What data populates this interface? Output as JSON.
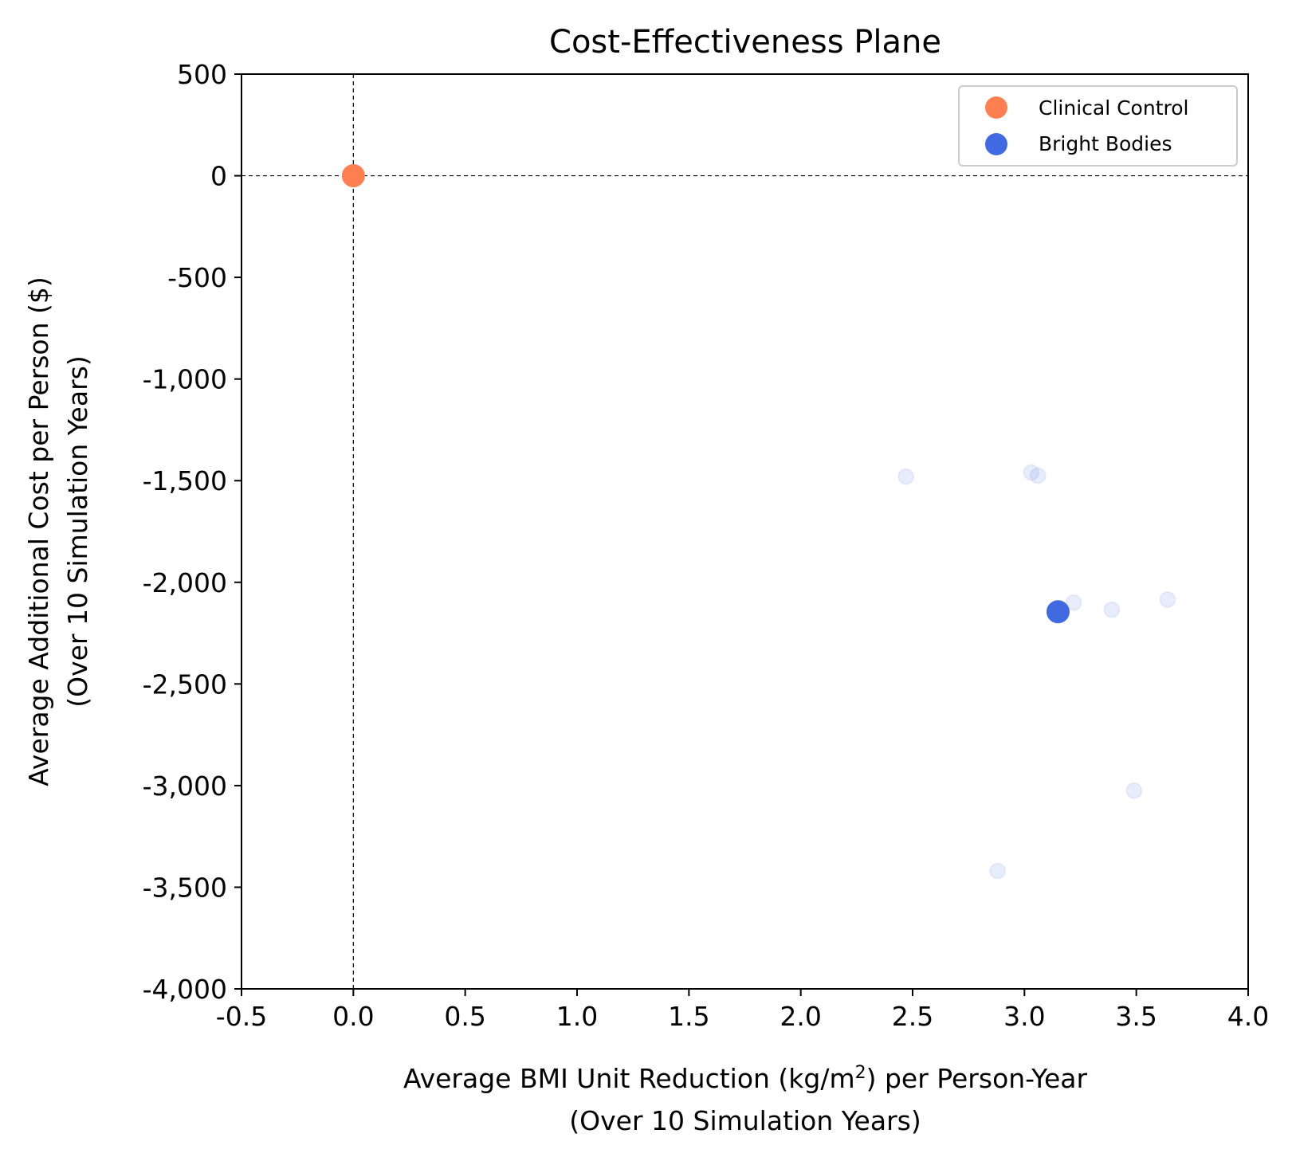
{
  "chart_data": {
    "type": "scatter",
    "title": "Cost-Effectiveness Plane",
    "xlabel": {
      "line1_prefix": "Average BMI Unit Reduction (kg/m",
      "line1_sup": "2",
      "line1_suffix": ") per Person-Year",
      "line2": "(Over 10 Simulation Years)"
    },
    "ylabel": {
      "line1": "Average Additional Cost per Person ($)",
      "line2": "(Over 10 Simulation Years)"
    },
    "xlim": [
      -0.5,
      4.0
    ],
    "ylim": [
      -4000,
      500
    ],
    "xticks": [
      -0.5,
      0.0,
      0.5,
      1.0,
      1.5,
      2.0,
      2.5,
      3.0,
      3.5,
      4.0
    ],
    "xtick_labels": [
      "-0.5",
      "0.0",
      "0.5",
      "1.0",
      "1.5",
      "2.0",
      "2.5",
      "3.0",
      "3.5",
      "4.0"
    ],
    "yticks": [
      500,
      0,
      -500,
      -1000,
      -1500,
      -2000,
      -2500,
      -3000,
      -3500,
      -4000
    ],
    "ytick_labels": [
      "500",
      "0",
      "-500",
      "-1,000",
      "-1,500",
      "-2,000",
      "-2,500",
      "-3,000",
      "-3,500",
      "-4,000"
    ],
    "reference_lines": {
      "x": 0,
      "y": 0,
      "style": "dashed"
    },
    "grid": false,
    "legend_position": "top-right",
    "series": [
      {
        "name": "Clinical Control",
        "color": "#ff7f50",
        "points": [
          {
            "x": 0.0,
            "y": 0
          }
        ]
      },
      {
        "name": "Bright Bodies",
        "color": "#4169e1",
        "points": [
          {
            "x": 3.15,
            "y": -2145
          }
        ]
      }
    ],
    "faded_points": {
      "color": "#4169e1",
      "opacity": 0.12,
      "points": [
        {
          "x": 2.47,
          "y": -1480
        },
        {
          "x": 3.03,
          "y": -1460
        },
        {
          "x": 3.06,
          "y": -1475
        },
        {
          "x": 3.22,
          "y": -2100
        },
        {
          "x": 3.39,
          "y": -2135
        },
        {
          "x": 3.64,
          "y": -2085
        },
        {
          "x": 3.49,
          "y": -3025
        },
        {
          "x": 2.88,
          "y": -3420
        }
      ]
    }
  }
}
